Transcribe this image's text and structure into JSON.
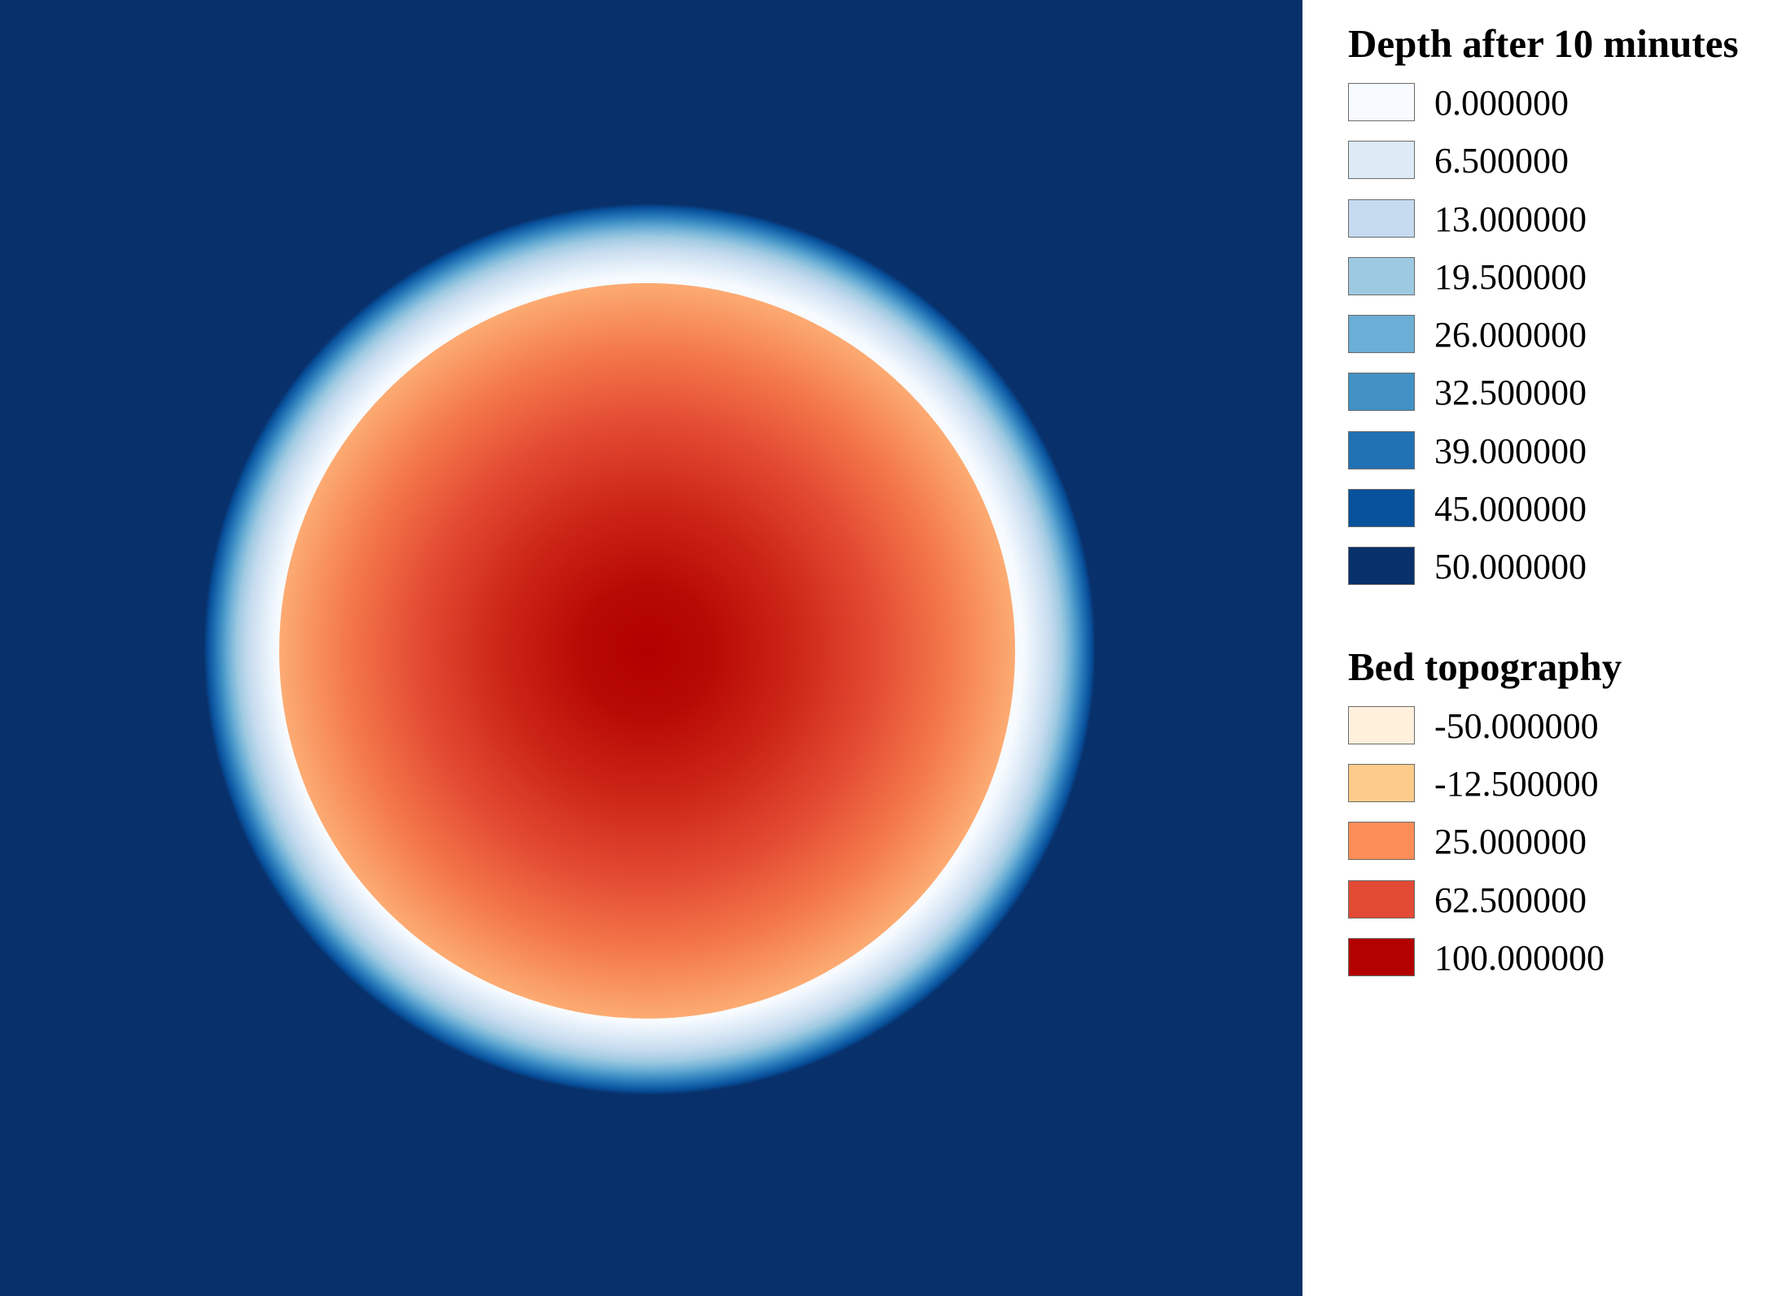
{
  "map": {
    "background_color": "#08306b"
  },
  "depth_layer": {
    "title": "Depth after 10 minutes",
    "classes": [
      {
        "label": "0.000000",
        "color": "#f7fbff"
      },
      {
        "label": "6.500000",
        "color": "#deebf7"
      },
      {
        "label": "13.000000",
        "color": "#c6dbef"
      },
      {
        "label": "19.500000",
        "color": "#9ecae1"
      },
      {
        "label": "26.000000",
        "color": "#6baed6"
      },
      {
        "label": "32.500000",
        "color": "#4292c6"
      },
      {
        "label": "39.000000",
        "color": "#2171b5"
      },
      {
        "label": "45.000000",
        "color": "#08519c"
      },
      {
        "label": "50.000000",
        "color": "#08306b"
      }
    ]
  },
  "bed_layer": {
    "title": "Bed topography",
    "classes": [
      {
        "label": "-50.000000",
        "color": "#fff0dc"
      },
      {
        "label": "-12.500000",
        "color": "#fdcc8a"
      },
      {
        "label": "25.000000",
        "color": "#fc8d59"
      },
      {
        "label": "62.500000",
        "color": "#e34a33"
      },
      {
        "label": "100.000000",
        "color": "#b30000"
      }
    ]
  }
}
